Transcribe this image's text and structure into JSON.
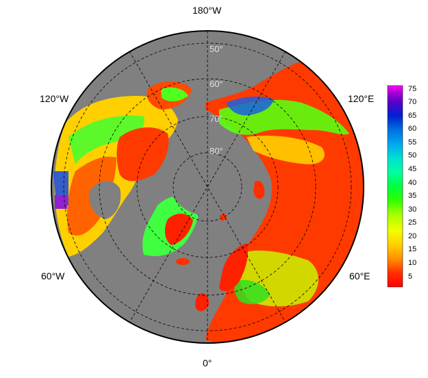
{
  "map": {
    "projection": "north-polar-stereographic",
    "background_ocean_color": "#808080",
    "coastline_color": "#000000",
    "graticule_style": "dashed",
    "longitude_labels": {
      "top": "180°W",
      "upper_left": "120°W",
      "upper_right": "120°E",
      "lower_left": "60°W",
      "lower_right": "60°E",
      "bottom": "0°"
    },
    "latitude_labels": [
      "50°",
      "60°",
      "70°",
      "80°"
    ]
  },
  "colorbar": {
    "ticks": [
      "75",
      "70",
      "65",
      "60",
      "55",
      "50",
      "45",
      "40",
      "35",
      "30",
      "25",
      "20",
      "15",
      "10",
      "5"
    ],
    "colors": [
      "#ff00ff",
      "#a000d0",
      "#5a00c8",
      "#0020d0",
      "#0070e0",
      "#00a8f0",
      "#00e0d0",
      "#00ffa0",
      "#00ff40",
      "#30ff00",
      "#a8ff00",
      "#f0ff00",
      "#ffd000",
      "#ff9000",
      "#ff3000",
      "#ff0000"
    ]
  }
}
